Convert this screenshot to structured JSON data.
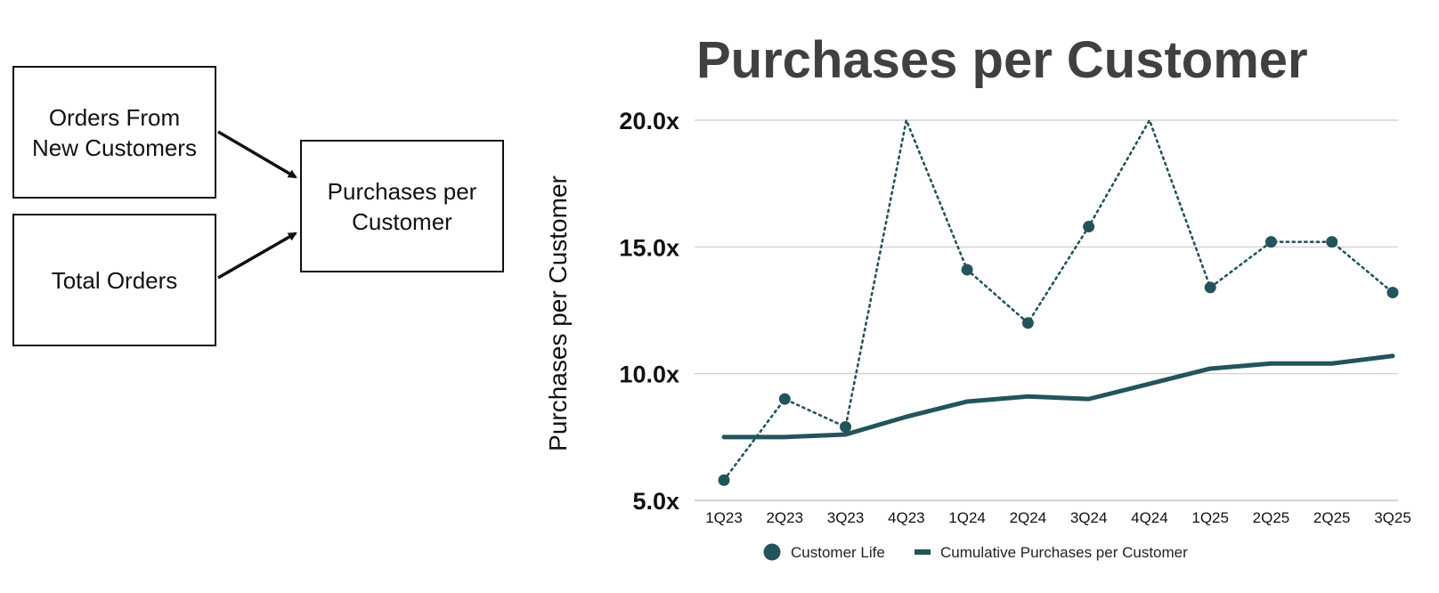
{
  "diagram": {
    "input_top": "Orders From\nNew Customers",
    "input_bottom": "Total Orders",
    "output": "Purchases per\nCustomer"
  },
  "chart_data": {
    "type": "line",
    "title": "Purchases per Customer",
    "xlabel": "",
    "ylabel": "Purchases per Customer",
    "categories": [
      "1Q23",
      "2Q23",
      "3Q23",
      "4Q23",
      "1Q24",
      "2Q24",
      "3Q24",
      "4Q24",
      "1Q25",
      "2Q25",
      "2Q25",
      "3Q25"
    ],
    "ylim": [
      5,
      20
    ],
    "yticks": [
      5,
      10,
      15,
      20
    ],
    "ytick_labels": [
      "5.0x",
      "10.0x",
      "15.0x",
      "20.0x"
    ],
    "grid": true,
    "legend": "bottom",
    "colors": {
      "series": "#23545b"
    },
    "series": [
      {
        "name": "Customer Life",
        "style": "dotted-markers",
        "values": [
          5.8,
          9.0,
          7.9,
          20.0,
          14.1,
          12.0,
          15.8,
          20.0,
          13.4,
          15.2,
          15.2,
          13.2
        ],
        "marker_visible": [
          true,
          true,
          true,
          false,
          true,
          true,
          true,
          false,
          true,
          true,
          true,
          true
        ]
      },
      {
        "name": "Cumulative Purchases per Customer",
        "style": "solid",
        "values": [
          7.5,
          7.5,
          7.6,
          8.3,
          8.9,
          9.1,
          9.0,
          9.6,
          10.2,
          10.4,
          10.4,
          10.7
        ]
      }
    ]
  }
}
